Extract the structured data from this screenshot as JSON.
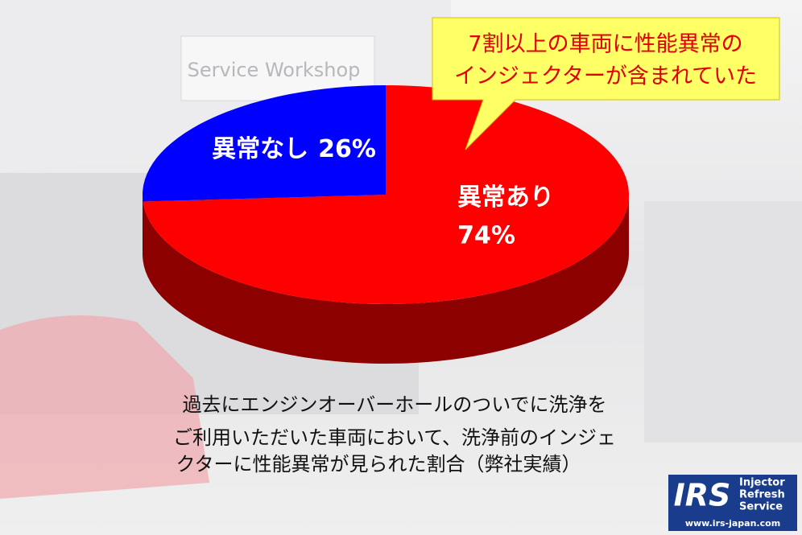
{
  "chart_data": {
    "type": "pie3d",
    "categories": [
      "異常あり",
      "異常なし"
    ],
    "values": [
      74,
      26
    ],
    "value_labels": [
      "74%",
      "26%"
    ],
    "colors": [
      "#ff0000",
      "#0000ff"
    ]
  },
  "callout": [
    "7割以上の車両に性能異常の",
    "インジェクターが含まれていた"
  ],
  "caption": [
    "過去にエンジンオーバーホールのついでに洗浄を",
    "ご利用いただいた車両において、洗浄前のインジェ",
    "クターに性能異常が見られた割合（弊社実績）"
  ],
  "background_sign": "Service Workshop",
  "logo": {
    "mark": "IRS",
    "words": [
      "Injector",
      "Refresh",
      "Service"
    ],
    "url": "www.irs-japan.com"
  }
}
